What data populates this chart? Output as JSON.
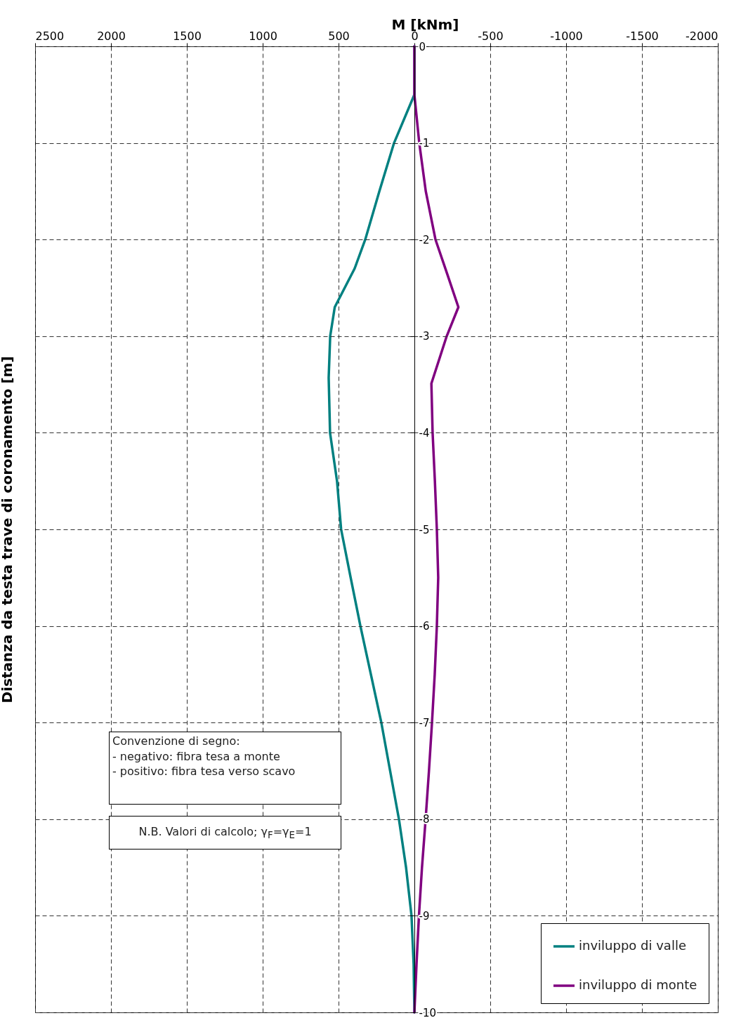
{
  "chart_data": {
    "type": "line",
    "xlabel": "M [kNm]",
    "ylabel": "Distanza da testa trave di coronamento [m]",
    "xlim": [
      2500,
      -2000
    ],
    "xticks": [
      2500,
      2000,
      1500,
      1000,
      500,
      0,
      -500,
      -1000,
      -1500,
      -2000
    ],
    "ylim": [
      -10,
      0
    ],
    "yticks": [
      0,
      -1,
      -2,
      -3,
      -4,
      -5,
      -6,
      -7,
      -8,
      -9,
      -10
    ],
    "grid": true,
    "legend": "bottom right",
    "line_style": "solid",
    "marker": "none",
    "series": [
      {
        "name": "inviluppo di valle",
        "color": "#008080",
        "x": [
          0,
          0,
          134,
          231,
          324,
          394,
          525,
          555,
          565,
          556,
          510,
          483,
          420,
          356,
          287,
          218,
          160,
          102,
          55,
          19,
          5,
          0
        ],
        "values": [
          0,
          -0.5,
          -1,
          -1.5,
          -2,
          -2.3,
          -2.7,
          -3,
          -3.43,
          -4,
          -4.5,
          -5,
          -5.5,
          -6,
          -6.5,
          -7,
          -7.5,
          -8,
          -8.5,
          -9,
          -9.5,
          -10
        ]
      },
      {
        "name": "inviluppo di monte",
        "color": "#800080",
        "x": [
          0,
          0,
          -32,
          -75,
          -139,
          -215,
          -290,
          -213,
          -112,
          -120,
          -135,
          -148,
          -157,
          -148,
          -134,
          -116,
          -96,
          -74,
          -50,
          -30,
          -14,
          0
        ],
        "values": [
          0,
          -0.5,
          -1,
          -1.5,
          -2,
          -2.35,
          -2.7,
          -3,
          -3.49,
          -4,
          -4.5,
          -5,
          -5.5,
          -6,
          -6.5,
          -7,
          -7.5,
          -8,
          -8.5,
          -9,
          -9.5,
          -10
        ]
      }
    ],
    "annotations": [
      "Convenzione di segno:\n- negativo: fibra tesa a monte\n- positivo: fibra tesa verso scavo",
      "N.B. Valori di calcolo; γ$_{F}$=γ$_{E}$=1"
    ]
  }
}
